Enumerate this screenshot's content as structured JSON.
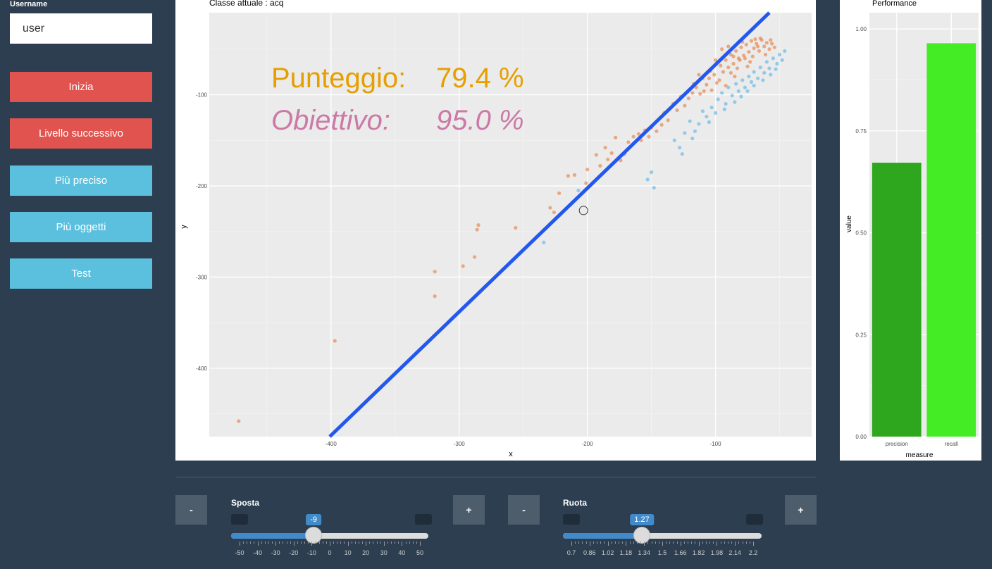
{
  "sidebar": {
    "username_label": "Username",
    "username_value": "user",
    "buttons": [
      {
        "label": "Inizia",
        "color": "#e0534f"
      },
      {
        "label": "Livello successivo",
        "color": "#e0534f"
      },
      {
        "label": "Più preciso",
        "color": "#5bc0de"
      },
      {
        "label": "Più oggetti",
        "color": "#5bc0de"
      },
      {
        "label": "Test",
        "color": "#5bc0de"
      }
    ]
  },
  "main_plot": {
    "title": "Classe attuale : acq",
    "score_label": "Punteggio:",
    "score_value": "79.4 %",
    "target_label": "Obiettivo:",
    "target_value": "95.0 %",
    "xlabel": "x",
    "ylabel": "y",
    "x_ticks": [
      "-400",
      "-300",
      "-200",
      "-100"
    ],
    "y_ticks": [
      "-100",
      "-200",
      "-300",
      "-400"
    ],
    "xlim": [
      -495,
      -25
    ],
    "ylim": [
      -475,
      -10
    ],
    "line": {
      "x": [
        -401,
        -58
      ],
      "y": [
        -475,
        -10
      ],
      "color": "#2358ee"
    },
    "marker": {
      "x": -203,
      "y": -227
    },
    "colors": {
      "orange": "#e8793a",
      "blue": "#74bde8",
      "score": "#e69f00",
      "target": "#cc79a7"
    },
    "points_orange": [
      [
        -472,
        -458
      ],
      [
        -397,
        -370
      ],
      [
        -319,
        -321
      ],
      [
        -319,
        -294
      ],
      [
        -297,
        -288
      ],
      [
        -288,
        -278
      ],
      [
        -286,
        -248
      ],
      [
        -285,
        -243
      ],
      [
        -256,
        -246
      ],
      [
        -229,
        -224
      ],
      [
        -226,
        -229
      ],
      [
        -222,
        -208
      ],
      [
        -215,
        -189
      ],
      [
        -210,
        -188
      ],
      [
        -201,
        -197
      ],
      [
        -200,
        -182
      ],
      [
        -193,
        -166
      ],
      [
        -190,
        -178
      ],
      [
        -186,
        -158
      ],
      [
        -184,
        -171
      ],
      [
        -181,
        -164
      ],
      [
        -178,
        -147
      ],
      [
        -174,
        -172
      ],
      [
        -171,
        -165
      ],
      [
        -168,
        -152
      ],
      [
        -164,
        -146
      ],
      [
        -160,
        -143
      ],
      [
        -158,
        -150
      ],
      [
        -155,
        -139
      ],
      [
        -152,
        -146
      ],
      [
        -150,
        -136
      ],
      [
        -146,
        -140
      ],
      [
        -142,
        -133
      ],
      [
        -140,
        -120
      ],
      [
        -137,
        -128
      ],
      [
        -133,
        -110
      ],
      [
        -130,
        -117
      ],
      [
        -127,
        -102
      ],
      [
        -124,
        -112
      ],
      [
        -121,
        -104
      ],
      [
        -118,
        -98
      ],
      [
        -115,
        -92
      ],
      [
        -112,
        -99
      ],
      [
        -110,
        -82
      ],
      [
        -107,
        -89
      ],
      [
        -104,
        -74
      ],
      [
        -101,
        -78
      ],
      [
        -99,
        -87
      ],
      [
        -96,
        -68
      ],
      [
        -94,
        -75
      ],
      [
        -92,
        -62
      ],
      [
        -90,
        -70
      ],
      [
        -88,
        -56
      ],
      [
        -86,
        -66
      ],
      [
        -84,
        -52
      ],
      [
        -82,
        -60
      ],
      [
        -80,
        -48
      ],
      [
        -78,
        -57
      ],
      [
        -76,
        -45
      ],
      [
        -74,
        -53
      ],
      [
        -72,
        -41
      ],
      [
        -70,
        -49
      ],
      [
        -68,
        -44
      ],
      [
        -66,
        -52
      ],
      [
        -64,
        -40
      ],
      [
        -62,
        -47
      ],
      [
        -60,
        -43
      ],
      [
        -58,
        -50
      ],
      [
        -56,
        -44
      ],
      [
        -54,
        -48
      ],
      [
        -95,
        -50
      ],
      [
        -90,
        -47
      ],
      [
        -86,
        -58
      ],
      [
        -105,
        -82
      ],
      [
        -100,
        -62
      ],
      [
        -79,
        -42
      ],
      [
        -73,
        -64
      ],
      [
        -69,
        -39
      ],
      [
        -83,
        -71
      ],
      [
        -65,
        -38
      ],
      [
        -61,
        -56
      ],
      [
        -57,
        -40
      ],
      [
        -109,
        -96
      ],
      [
        -113,
        -78
      ],
      [
        -117,
        -88
      ],
      [
        -103,
        -95
      ],
      [
        -77,
        -60
      ],
      [
        -71,
        -58
      ],
      [
        -88,
        -76
      ],
      [
        -97,
        -84
      ],
      [
        -92,
        -90
      ],
      [
        -81,
        -62
      ],
      [
        -67,
        -47
      ],
      [
        -75,
        -69
      ],
      [
        -85,
        -80
      ]
    ],
    "points_blue": [
      [
        -234,
        -262
      ],
      [
        -207,
        -205
      ],
      [
        -150,
        -185
      ],
      [
        -148,
        -202
      ],
      [
        -153,
        -193
      ],
      [
        -132,
        -150
      ],
      [
        -128,
        -158
      ],
      [
        -126,
        -165
      ],
      [
        -124,
        -142
      ],
      [
        -120,
        -129
      ],
      [
        -116,
        -140
      ],
      [
        -113,
        -132
      ],
      [
        -110,
        -118
      ],
      [
        -107,
        -124
      ],
      [
        -103,
        -114
      ],
      [
        -100,
        -120
      ],
      [
        -98,
        -105
      ],
      [
        -95,
        -98
      ],
      [
        -92,
        -110
      ],
      [
        -90,
        -92
      ],
      [
        -87,
        -101
      ],
      [
        -84,
        -88
      ],
      [
        -82,
        -96
      ],
      [
        -79,
        -84
      ],
      [
        -77,
        -92
      ],
      [
        -74,
        -80
      ],
      [
        -72,
        -86
      ],
      [
        -70,
        -75
      ],
      [
        -67,
        -82
      ],
      [
        -65,
        -70
      ],
      [
        -62,
        -76
      ],
      [
        -60,
        -64
      ],
      [
        -58,
        -71
      ],
      [
        -55,
        -60
      ],
      [
        -52,
        -66
      ],
      [
        -50,
        -56
      ],
      [
        -48,
        -62
      ],
      [
        -46,
        -52
      ],
      [
        -85,
        -108
      ],
      [
        -80,
        -102
      ],
      [
        -75,
        -96
      ],
      [
        -70,
        -90
      ],
      [
        -63,
        -84
      ],
      [
        -57,
        -78
      ],
      [
        -53,
        -72
      ],
      [
        -93,
        -116
      ],
      [
        -118,
        -148
      ],
      [
        -105,
        -130
      ]
    ]
  },
  "perf_plot": {
    "title": "Performance",
    "xlabel": "measure",
    "ylabel": "value",
    "y_ticks": [
      "0.00",
      "0.25",
      "0.50",
      "0.75",
      "1.00"
    ],
    "ylim": [
      0,
      1.04
    ]
  },
  "chart_data": {
    "type": "bar",
    "categories": [
      "precision",
      "recall"
    ],
    "values": [
      0.672,
      0.965
    ],
    "colors": [
      "#2ea71e",
      "#43ec25"
    ],
    "title": "Performance",
    "xlabel": "measure",
    "ylabel": "value",
    "ylim": [
      0,
      1.04
    ]
  },
  "controls": {
    "minus_label": "-",
    "plus_label": "+",
    "sposta": {
      "label": "Sposta",
      "value": -9,
      "value_text": "-9",
      "min": -55,
      "max": 55,
      "tick_labels": [
        "-50",
        "-40",
        "-30",
        "-20",
        "-10",
        "0",
        "10",
        "20",
        "30",
        "40",
        "50"
      ]
    },
    "ruota": {
      "label": "Ruota",
      "value": 1.27,
      "value_text": "1.27",
      "min": 0.63,
      "max": 2.24,
      "tick_labels": [
        "0.7",
        "0.86",
        "1.02",
        "1.18",
        "1.34",
        "1.5",
        "1.66",
        "1.82",
        "1.98",
        "2.14",
        "2.2"
      ]
    }
  }
}
